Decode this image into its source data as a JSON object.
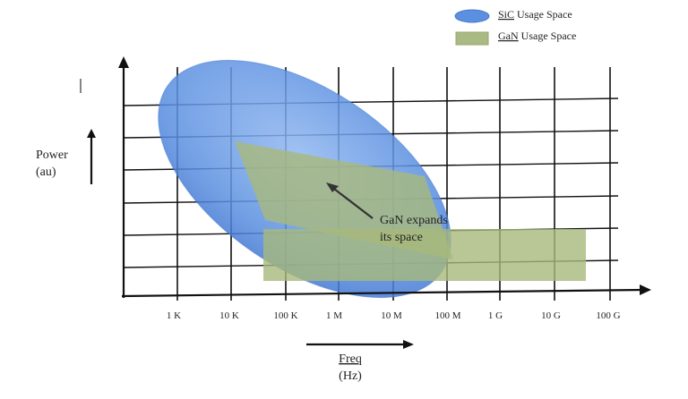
{
  "legend": {
    "items": [
      {
        "label_prefix": "SiC",
        "label_rest": " Usage Space",
        "color": "#5b8fe0"
      },
      {
        "label_prefix": "GaN",
        "label_rest": " Usage Space",
        "color": "#a9bb82"
      }
    ]
  },
  "y_axis": {
    "title_line1": "Power",
    "title_line2": "(au)"
  },
  "x_axis": {
    "title_line1": "Freq",
    "title_line2": "(Hz)",
    "ticks": [
      "1 K",
      "10 K",
      "100 K",
      "1 M",
      "10 M",
      "100 M",
      "1 G",
      "10 G",
      "100 G"
    ]
  },
  "annotation": {
    "line1": "GaN expands",
    "line2": "its space"
  },
  "colors": {
    "sic_fill": "#4f86dc",
    "gan_fill": "#a4b67a",
    "grid": "#111111"
  }
}
